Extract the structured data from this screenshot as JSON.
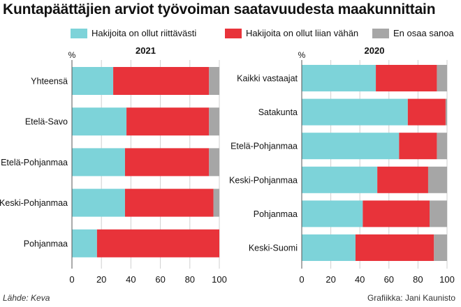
{
  "title": "Kuntapäättäjien arviot työvoiman saatavuudesta maakunnittain",
  "legend": [
    {
      "label": "Hakijoita on ollut riittävästi",
      "color": "#7dd3d9"
    },
    {
      "label": "Hakijoita on ollut liian vähän",
      "color": "#e8333a"
    },
    {
      "label": "En osaa sanoa",
      "color": "#a6a6a6"
    }
  ],
  "footer": {
    "source": "Lähde: Keva",
    "credit": "Grafiikka: Jani Kaunisto"
  },
  "chart_data": [
    {
      "type": "bar",
      "orientation": "horizontal",
      "stacked": true,
      "title": "2021",
      "unit_label": "%",
      "xlim": [
        0,
        100
      ],
      "ticks": [
        0,
        20,
        40,
        60,
        80,
        100
      ],
      "grid": true,
      "categories": [
        "Yhteensä",
        "Etelä-Savo",
        "Etelä-Pohjanmaa",
        "Keski-Pohjanmaa",
        "Pohjanmaa"
      ],
      "series": [
        {
          "name": "Hakijoita on ollut riittävästi",
          "values": [
            28,
            37,
            36,
            36,
            17
          ]
        },
        {
          "name": "Hakijoita on ollut liian vähän",
          "values": [
            65,
            56,
            57,
            60,
            83
          ]
        },
        {
          "name": "En osaa sanoa",
          "values": [
            7,
            7,
            7,
            4,
            0
          ]
        }
      ]
    },
    {
      "type": "bar",
      "orientation": "horizontal",
      "stacked": true,
      "title": "2020",
      "unit_label": "%",
      "xlim": [
        0,
        100
      ],
      "ticks": [
        0,
        20,
        40,
        60,
        80,
        100
      ],
      "grid": true,
      "categories": [
        "Kaikki vastaajat",
        "Satakunta",
        "Etelä-Pohjanmaa",
        "Keski-Pohjanmaa",
        "Pohjanmaa",
        "Keski-Suomi"
      ],
      "series": [
        {
          "name": "Hakijoita on ollut riittävästi",
          "values": [
            51,
            73,
            67,
            52,
            42,
            37
          ]
        },
        {
          "name": "Hakijoita on ollut liian vähän",
          "values": [
            42,
            26,
            26,
            35,
            46,
            54
          ]
        },
        {
          "name": "En osaa sanoa",
          "values": [
            7,
            1,
            7,
            13,
            12,
            9
          ]
        }
      ]
    }
  ]
}
